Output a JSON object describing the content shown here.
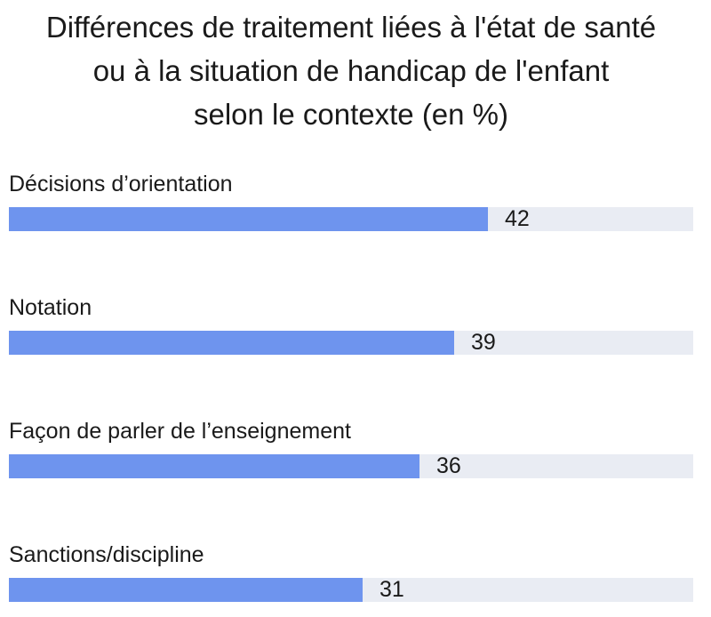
{
  "chart_data": {
    "type": "bar",
    "orientation": "horizontal",
    "title": "Différences de traitement liées à l'état de santé ou à la situation de handicap de l'enfant selon le contexte (en %)",
    "title_lines": [
      "Différences de traitement liées à l'état de santé",
      "ou à la situation de handicap de l'enfant",
      "selon le contexte (en %)"
    ],
    "categories": [
      "Décisions d’orientation",
      "Notation",
      "Façon de parler de l’enseignement",
      "Sanctions/discipline"
    ],
    "values": [
      42,
      39,
      36,
      31
    ],
    "value_labels": [
      "42",
      "39",
      "36",
      "31"
    ],
    "xlim": [
      0,
      60
    ],
    "grid": false,
    "legend": "none",
    "colors": {
      "bar": "#6e94ee",
      "track": "#e9ecf3",
      "text": "#1a1a1a"
    }
  }
}
